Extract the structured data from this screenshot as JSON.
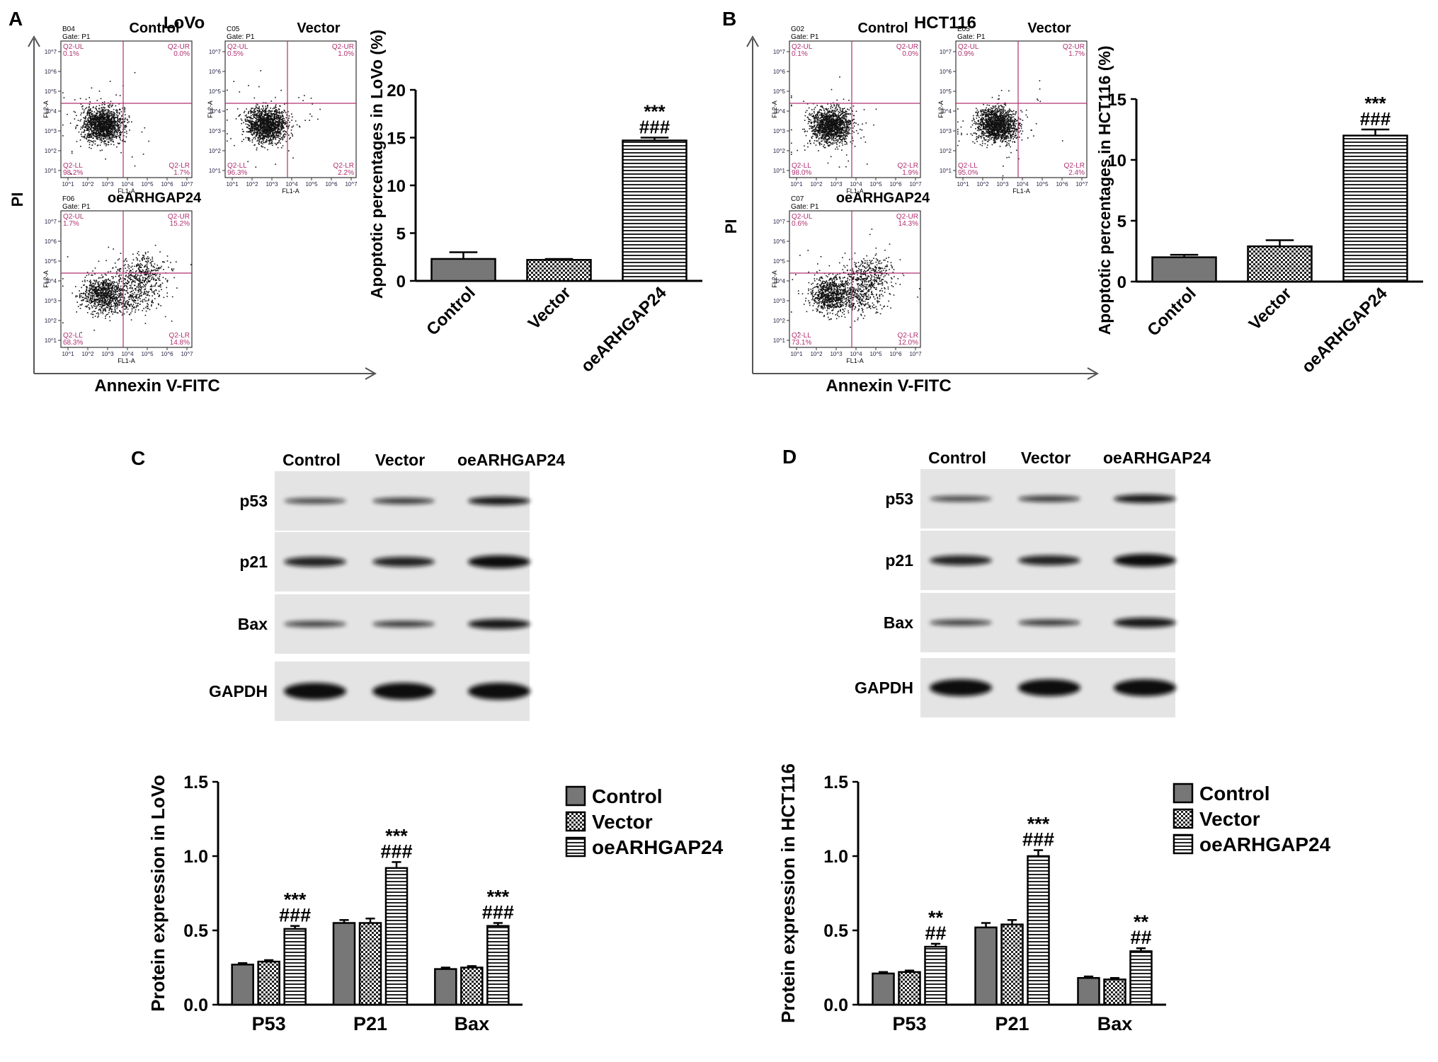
{
  "panels": {
    "A": {
      "letter": "A",
      "cell_line": "LoVo",
      "y_axis": "PI",
      "x_axis": "Annexin V-FITC"
    },
    "B": {
      "letter": "B",
      "cell_line": "HCT116",
      "y_axis": "PI",
      "x_axis": "Annexin V-FITC"
    },
    "C": {
      "letter": "C"
    },
    "D": {
      "letter": "D"
    }
  },
  "flow_plots": {
    "common": {
      "x_channel": "FL1-A",
      "y_channel": "FL2-A",
      "gate": "Gate: P1",
      "quad_labels": [
        "Q2-UL",
        "Q2-UR",
        "Q2-LL",
        "Q2-LR"
      ],
      "tick_labels": [
        "10^1",
        "10^2",
        "10^3",
        "10^4",
        "10^5",
        "10^6",
        "10^7"
      ]
    },
    "A": [
      {
        "id": "B04",
        "title": "Control",
        "q": [
          "0.1%",
          "0.0%",
          "98.2%",
          "1.7%"
        ]
      },
      {
        "id": "C05",
        "title": "Vector",
        "q": [
          "0.5%",
          "1.0%",
          "96.3%",
          "2.2%"
        ]
      },
      {
        "id": "F06",
        "title": "oeARHGAP24",
        "q": [
          "1.7%",
          "15.2%",
          "68.3%",
          "14.8%"
        ]
      }
    ],
    "B": [
      {
        "id": "G02",
        "title": "Control",
        "q": [
          "0.1%",
          "0.0%",
          "98.0%",
          "1.9%"
        ]
      },
      {
        "id": "E05",
        "title": "Vector",
        "q": [
          "0.9%",
          "1.7%",
          "95.0%",
          "2.4%"
        ]
      },
      {
        "id": "C07",
        "title": "oeARHGAP24",
        "q": [
          "0.6%",
          "14.3%",
          "73.1%",
          "12.0%"
        ]
      }
    ]
  },
  "blots": {
    "C": {
      "lanes": [
        "Control",
        "Vector",
        "oeARHGAP24"
      ],
      "proteins": [
        "p53",
        "p21",
        "Bax",
        "GAPDH"
      ]
    },
    "D": {
      "lanes": [
        "Control",
        "Vector",
        "oeARHGAP24"
      ],
      "proteins": [
        "p53",
        "p21",
        "Bax",
        "GAPDH"
      ]
    }
  },
  "chart_data": [
    {
      "id": "apoptosis-lovo",
      "type": "bar",
      "categories": [
        "Control",
        "Vector",
        "oeARHGAP24"
      ],
      "values": [
        2.3,
        2.2,
        14.7
      ],
      "errors": [
        0.7,
        0.1,
        0.3
      ],
      "annotations": [
        "",
        "",
        "***\n###"
      ],
      "ylabel": "Apoptotic percentages in LoVo  (%)",
      "ylim": [
        0,
        20
      ],
      "yticks": [
        0,
        5,
        10,
        15,
        20
      ],
      "colors": {
        "bar-1": "#777777",
        "bar-2": "#bbbbbb",
        "bar-3": "#ffffff"
      }
    },
    {
      "id": "apoptosis-hct116",
      "type": "bar",
      "categories": [
        "Control",
        "Vector",
        "oeARHGAP24"
      ],
      "values": [
        2.0,
        2.9,
        12.0
      ],
      "errors": [
        0.2,
        0.5,
        0.5
      ],
      "annotations": [
        "",
        "",
        "***\n###"
      ],
      "ylabel": "Apoptotic percentages in HCT116 (%)",
      "ylim": [
        0,
        15
      ],
      "yticks": [
        0,
        5,
        10,
        15
      ],
      "colors": {
        "bar-1": "#777777",
        "bar-2": "#bbbbbb",
        "bar-3": "#ffffff"
      }
    },
    {
      "id": "protein-lovo",
      "type": "bar",
      "categories": [
        "P53",
        "P21",
        "Bax"
      ],
      "series": [
        {
          "name": "Control",
          "values": [
            0.27,
            0.55,
            0.24
          ],
          "errors": [
            0.01,
            0.02,
            0.01
          ],
          "annotations": [
            "",
            "",
            ""
          ]
        },
        {
          "name": "Vector",
          "values": [
            0.29,
            0.55,
            0.25
          ],
          "errors": [
            0.01,
            0.03,
            0.01
          ],
          "annotations": [
            "",
            "",
            ""
          ]
        },
        {
          "name": "oeARHGAP24",
          "values": [
            0.51,
            0.92,
            0.53
          ],
          "errors": [
            0.02,
            0.04,
            0.02
          ],
          "annotations": [
            "***\n###",
            "***\n###",
            "***\n###"
          ]
        }
      ],
      "ylabel": "Protein expression in LoVo",
      "ylim": [
        0,
        1.5
      ],
      "yticks": [
        "0.0",
        "0.5",
        "1.0",
        "1.5"
      ],
      "legend": "right"
    },
    {
      "id": "protein-hct116",
      "type": "bar",
      "categories": [
        "P53",
        "P21",
        "Bax"
      ],
      "series": [
        {
          "name": "Control",
          "values": [
            0.21,
            0.52,
            0.18
          ],
          "errors": [
            0.01,
            0.03,
            0.01
          ],
          "annotations": [
            "",
            "",
            ""
          ]
        },
        {
          "name": "Vector",
          "values": [
            0.22,
            0.54,
            0.17
          ],
          "errors": [
            0.01,
            0.03,
            0.01
          ],
          "annotations": [
            "",
            "",
            ""
          ]
        },
        {
          "name": "oeARHGAP24",
          "values": [
            0.39,
            1.0,
            0.36
          ],
          "errors": [
            0.02,
            0.04,
            0.02
          ],
          "annotations": [
            "**\n##",
            "***\n###",
            "**\n##"
          ]
        }
      ],
      "ylabel": "Protein expression in HCT116",
      "ylim": [
        0,
        1.5
      ],
      "yticks": [
        "0.0",
        "0.5",
        "1.0",
        "1.5"
      ],
      "legend": "right"
    }
  ]
}
